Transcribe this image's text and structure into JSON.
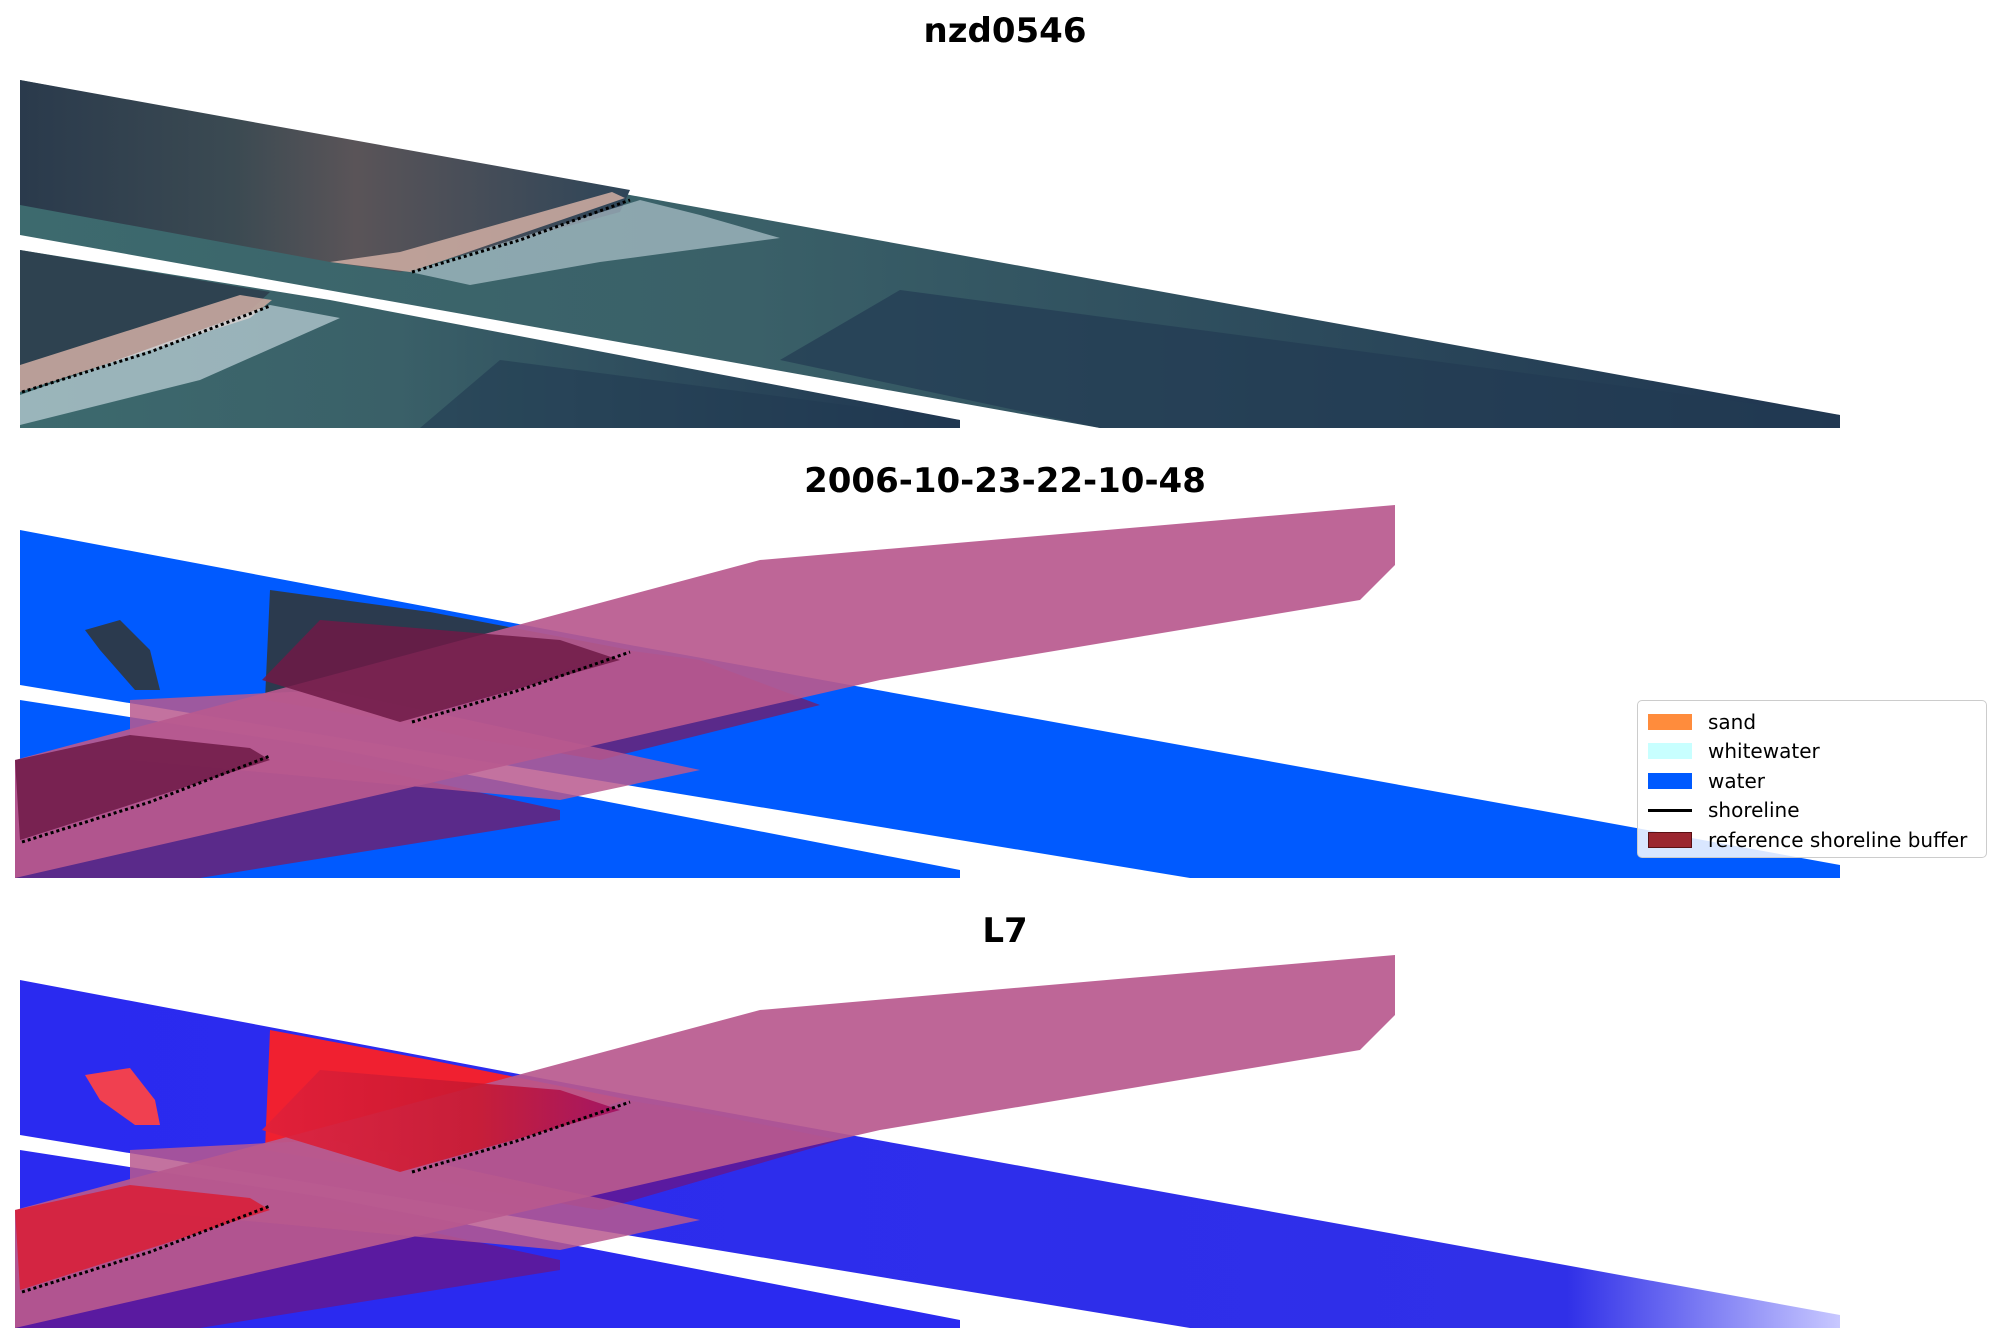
{
  "figure": {
    "panels": [
      {
        "id": "rgb",
        "title": "nzd0546"
      },
      {
        "id": "classified",
        "title": "2006-10-23-22-10-48"
      },
      {
        "id": "index",
        "title": "L7"
      }
    ]
  },
  "legend": {
    "items": [
      {
        "label": "sand",
        "kind": "patch",
        "color": "#ff8c3c",
        "edge": "#ff8c3c"
      },
      {
        "label": "whitewater",
        "kind": "patch",
        "color": "#c8ffff",
        "edge": "#c8ffff"
      },
      {
        "label": "water",
        "kind": "patch",
        "color": "#005aff",
        "edge": "#005aff"
      },
      {
        "label": "shoreline",
        "kind": "line",
        "color": "#000000"
      },
      {
        "label": "reference shoreline buffer",
        "kind": "patch",
        "color": "#9b2630",
        "edge": "#5a0f14"
      }
    ]
  },
  "colors": {
    "land_dark": "#2b3a4e",
    "sea_dark": "#24394f",
    "sea_mid": "#3f6470",
    "beach_sand": "#c9a8a0",
    "surf": "#d6e6ee",
    "class_water": "#005aff",
    "class_sand_overlay": "#5a2a8a",
    "buffer_overlay": "#b8598e",
    "buffer_dark": "#6e1a46",
    "index_blue": "#2020f0",
    "index_red": "#f02030",
    "index_purple": "#5a1aa0"
  }
}
